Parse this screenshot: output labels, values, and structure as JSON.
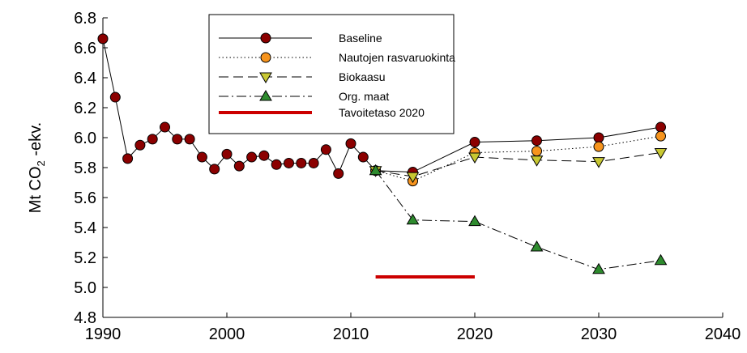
{
  "chart_data": {
    "type": "line",
    "ylabel": [
      "Mt CO",
      "2",
      " -ekv."
    ],
    "xlim": [
      1990,
      2040
    ],
    "xticks": [
      1990,
      2000,
      2010,
      2020,
      2030,
      2040
    ],
    "ylim": [
      4.8,
      6.8
    ],
    "yticks": [
      4.8,
      {
        "value": 5,
        "label": "5.0"
      },
      5.2,
      5.4,
      5.6,
      5.8,
      {
        "value": 6,
        "label": "6.0"
      },
      6.2,
      6.4,
      6.6,
      6.8
    ],
    "legend": "upper center",
    "series": [
      {
        "name": "Baseline",
        "color": "#8b0000",
        "marker": "circle",
        "dash": "solid",
        "x": [
          1990,
          1991,
          1992,
          1993,
          1994,
          1995,
          1996,
          1997,
          1998,
          1999,
          2000,
          2001,
          2002,
          2003,
          2004,
          2005,
          2006,
          2007,
          2008,
          2009,
          2010,
          2011,
          2012,
          2015,
          2020,
          2025,
          2030,
          2035
        ],
        "values": [
          6.66,
          6.27,
          5.86,
          5.95,
          5.99,
          6.07,
          5.99,
          5.99,
          5.87,
          5.79,
          5.89,
          5.81,
          5.87,
          5.88,
          5.82,
          5.83,
          5.83,
          5.83,
          5.92,
          5.76,
          5.96,
          5.87,
          5.78,
          5.77,
          5.97,
          5.98,
          6.0,
          6.07
        ]
      },
      {
        "name": "Nautojen rasvaruokinta",
        "color": "#f7941d",
        "marker": "circle",
        "dash": "dotted",
        "x": [
          2012,
          2015,
          2020,
          2025,
          2030,
          2035
        ],
        "values": [
          5.78,
          5.71,
          5.9,
          5.91,
          5.94,
          6.01
        ]
      },
      {
        "name": "Biokaasu",
        "color": "#c8c832",
        "marker": "triangle-down",
        "dash": "dashed",
        "x": [
          2012,
          2015,
          2020,
          2025,
          2030,
          2035
        ],
        "values": [
          5.78,
          5.74,
          5.87,
          5.85,
          5.84,
          5.9
        ]
      },
      {
        "name": "Org. maat",
        "color": "#2e8b2e",
        "marker": "triangle-up",
        "dash": "dashdot",
        "x": [
          2012,
          2015,
          2020,
          2025,
          2030,
          2035
        ],
        "values": [
          5.78,
          5.45,
          5.44,
          5.27,
          5.12,
          5.18
        ]
      },
      {
        "name": "Tavoitetaso 2020",
        "color": "#cc0000",
        "marker": "none",
        "dash": "thick",
        "x": [
          2012,
          2020
        ],
        "values": [
          5.07,
          5.07
        ]
      }
    ]
  }
}
